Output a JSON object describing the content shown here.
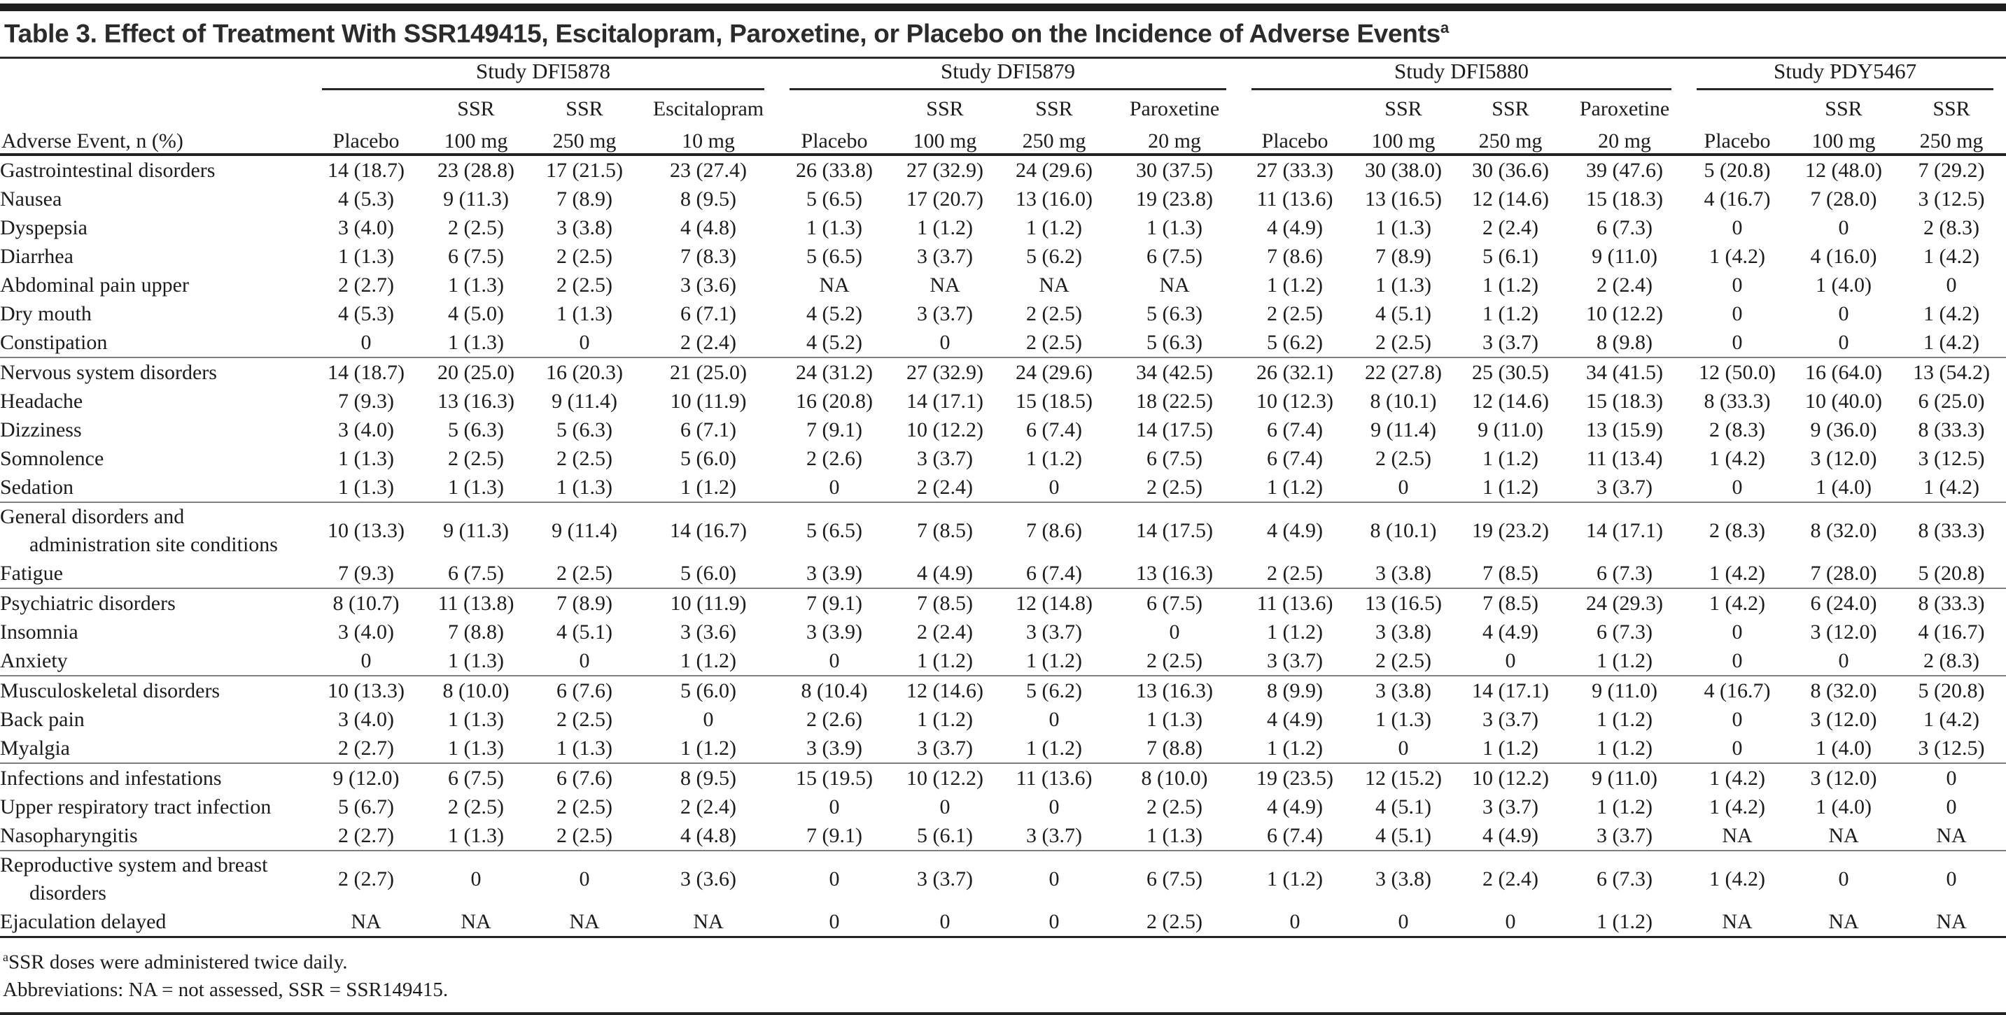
{
  "table": {
    "title": "Table 3. Effect of Treatment With SSR149415, Escitalopram, Paroxetine, or Placebo on the Incidence of Adverse Events",
    "title_superscript": "a",
    "row_header": "Adverse Event, n (%)",
    "groups": [
      {
        "name": "Study DFI5878",
        "cols": [
          {
            "drug": "",
            "dose": "Placebo"
          },
          {
            "drug": "SSR",
            "dose": "100 mg"
          },
          {
            "drug": "SSR",
            "dose": "250 mg"
          },
          {
            "drug": "Escitalopram",
            "dose": "10 mg"
          }
        ]
      },
      {
        "name": "Study DFI5879",
        "cols": [
          {
            "drug": "",
            "dose": "Placebo"
          },
          {
            "drug": "SSR",
            "dose": "100 mg"
          },
          {
            "drug": "SSR",
            "dose": "250 mg"
          },
          {
            "drug": "Paroxetine",
            "dose": "20 mg"
          }
        ]
      },
      {
        "name": "Study DFI5880",
        "cols": [
          {
            "drug": "",
            "dose": "Placebo"
          },
          {
            "drug": "SSR",
            "dose": "100 mg"
          },
          {
            "drug": "SSR",
            "dose": "250 mg"
          },
          {
            "drug": "Paroxetine",
            "dose": "20 mg"
          }
        ]
      },
      {
        "name": "Study PDY5467",
        "cols": [
          {
            "drug": "",
            "dose": "Placebo"
          },
          {
            "drug": "SSR",
            "dose": "100 mg"
          },
          {
            "drug": "SSR",
            "dose": "250 mg"
          }
        ]
      }
    ],
    "sections": [
      {
        "rows": [
          {
            "label": "Gastrointestinal disorders",
            "values": [
              "14 (18.7)",
              "23 (28.8)",
              "17 (21.5)",
              "23 (27.4)",
              "26 (33.8)",
              "27 (32.9)",
              "24 (29.6)",
              "30 (37.5)",
              "27 (33.3)",
              "30 (38.0)",
              "30 (36.6)",
              "39 (47.6)",
              "5 (20.8)",
              "12 (48.0)",
              "7 (29.2)"
            ]
          },
          {
            "label": "Nausea",
            "values": [
              "4 (5.3)",
              "9 (11.3)",
              "7 (8.9)",
              "8 (9.5)",
              "5 (6.5)",
              "17 (20.7)",
              "13 (16.0)",
              "19 (23.8)",
              "11 (13.6)",
              "13 (16.5)",
              "12 (14.6)",
              "15 (18.3)",
              "4 (16.7)",
              "7 (28.0)",
              "3 (12.5)"
            ]
          },
          {
            "label": "Dyspepsia",
            "values": [
              "3 (4.0)",
              "2 (2.5)",
              "3 (3.8)",
              "4 (4.8)",
              "1 (1.3)",
              "1 (1.2)",
              "1 (1.2)",
              "1 (1.3)",
              "4 (4.9)",
              "1 (1.3)",
              "2 (2.4)",
              "6 (7.3)",
              "0",
              "0",
              "2 (8.3)"
            ]
          },
          {
            "label": "Diarrhea",
            "values": [
              "1 (1.3)",
              "6 (7.5)",
              "2 (2.5)",
              "7 (8.3)",
              "5 (6.5)",
              "3 (3.7)",
              "5 (6.2)",
              "6 (7.5)",
              "7 (8.6)",
              "7 (8.9)",
              "5 (6.1)",
              "9 (11.0)",
              "1 (4.2)",
              "4 (16.0)",
              "1 (4.2)"
            ]
          },
          {
            "label": "Abdominal pain upper",
            "values": [
              "2 (2.7)",
              "1 (1.3)",
              "2 (2.5)",
              "3 (3.6)",
              "NA",
              "NA",
              "NA",
              "NA",
              "1 (1.2)",
              "1 (1.3)",
              "1 (1.2)",
              "2 (2.4)",
              "0",
              "1 (4.0)",
              "0"
            ]
          },
          {
            "label": "Dry mouth",
            "values": [
              "4 (5.3)",
              "4 (5.0)",
              "1 (1.3)",
              "6 (7.1)",
              "4 (5.2)",
              "3 (3.7)",
              "2 (2.5)",
              "5 (6.3)",
              "2 (2.5)",
              "4 (5.1)",
              "1 (1.2)",
              "10 (12.2)",
              "0",
              "0",
              "1 (4.2)"
            ]
          },
          {
            "label": "Constipation",
            "values": [
              "0",
              "1 (1.3)",
              "0",
              "2 (2.4)",
              "4 (5.2)",
              "0",
              "2 (2.5)",
              "5 (6.3)",
              "5 (6.2)",
              "2 (2.5)",
              "3 (3.7)",
              "8 (9.8)",
              "0",
              "0",
              "1 (4.2)"
            ]
          }
        ]
      },
      {
        "rows": [
          {
            "label": "Nervous system disorders",
            "values": [
              "14 (18.7)",
              "20 (25.0)",
              "16 (20.3)",
              "21 (25.0)",
              "24 (31.2)",
              "27 (32.9)",
              "24 (29.6)",
              "34 (42.5)",
              "26 (32.1)",
              "22 (27.8)",
              "25 (30.5)",
              "34 (41.5)",
              "12 (50.0)",
              "16 (64.0)",
              "13 (54.2)"
            ]
          },
          {
            "label": "Headache",
            "values": [
              "7 (9.3)",
              "13 (16.3)",
              "9 (11.4)",
              "10 (11.9)",
              "16 (20.8)",
              "14 (17.1)",
              "15 (18.5)",
              "18 (22.5)",
              "10 (12.3)",
              "8 (10.1)",
              "12 (14.6)",
              "15 (18.3)",
              "8 (33.3)",
              "10 (40.0)",
              "6 (25.0)"
            ]
          },
          {
            "label": "Dizziness",
            "values": [
              "3 (4.0)",
              "5 (6.3)",
              "5 (6.3)",
              "6 (7.1)",
              "7 (9.1)",
              "10 (12.2)",
              "6 (7.4)",
              "14 (17.5)",
              "6 (7.4)",
              "9 (11.4)",
              "9 (11.0)",
              "13 (15.9)",
              "2 (8.3)",
              "9 (36.0)",
              "8 (33.3)"
            ]
          },
          {
            "label": "Somnolence",
            "values": [
              "1 (1.3)",
              "2 (2.5)",
              "2 (2.5)",
              "5 (6.0)",
              "2 (2.6)",
              "3 (3.7)",
              "1 (1.2)",
              "6 (7.5)",
              "6 (7.4)",
              "2 (2.5)",
              "1 (1.2)",
              "11 (13.4)",
              "1 (4.2)",
              "3 (12.0)",
              "3 (12.5)"
            ]
          },
          {
            "label": "Sedation",
            "values": [
              "1 (1.3)",
              "1 (1.3)",
              "1 (1.3)",
              "1 (1.2)",
              "0",
              "2 (2.4)",
              "0",
              "2 (2.5)",
              "1 (1.2)",
              "0",
              "1 (1.2)",
              "3 (3.7)",
              "0",
              "1 (4.0)",
              "1 (4.2)"
            ]
          }
        ]
      },
      {
        "rows": [
          {
            "label": "General disorders and administration site conditions",
            "values": [
              "10 (13.3)",
              "9 (11.3)",
              "9 (11.4)",
              "14 (16.7)",
              "5 (6.5)",
              "7 (8.5)",
              "7 (8.6)",
              "14 (17.5)",
              "4 (4.9)",
              "8 (10.1)",
              "19 (23.2)",
              "14 (17.1)",
              "2 (8.3)",
              "8 (32.0)",
              "8 (33.3)"
            ]
          },
          {
            "label": "Fatigue",
            "values": [
              "7 (9.3)",
              "6 (7.5)",
              "2 (2.5)",
              "5 (6.0)",
              "3 (3.9)",
              "4 (4.9)",
              "6 (7.4)",
              "13 (16.3)",
              "2 (2.5)",
              "3 (3.8)",
              "7 (8.5)",
              "6 (7.3)",
              "1 (4.2)",
              "7 (28.0)",
              "5 (20.8)"
            ]
          }
        ]
      },
      {
        "rows": [
          {
            "label": "Psychiatric disorders",
            "values": [
              "8 (10.7)",
              "11 (13.8)",
              "7 (8.9)",
              "10 (11.9)",
              "7 (9.1)",
              "7 (8.5)",
              "12 (14.8)",
              "6 (7.5)",
              "11 (13.6)",
              "13 (16.5)",
              "7 (8.5)",
              "24 (29.3)",
              "1 (4.2)",
              "6 (24.0)",
              "8 (33.3)"
            ]
          },
          {
            "label": "Insomnia",
            "values": [
              "3 (4.0)",
              "7 (8.8)",
              "4 (5.1)",
              "3 (3.6)",
              "3 (3.9)",
              "2 (2.4)",
              "3 (3.7)",
              "0",
              "1 (1.2)",
              "3 (3.8)",
              "4 (4.9)",
              "6 (7.3)",
              "0",
              "3 (12.0)",
              "4 (16.7)"
            ]
          },
          {
            "label": "Anxiety",
            "values": [
              "0",
              "1 (1.3)",
              "0",
              "1 (1.2)",
              "0",
              "1 (1.2)",
              "1 (1.2)",
              "2 (2.5)",
              "3 (3.7)",
              "2 (2.5)",
              "0",
              "1 (1.2)",
              "0",
              "0",
              "2 (8.3)"
            ]
          }
        ]
      },
      {
        "rows": [
          {
            "label": "Musculoskeletal disorders",
            "values": [
              "10 (13.3)",
              "8 (10.0)",
              "6 (7.6)",
              "5 (6.0)",
              "8 (10.4)",
              "12 (14.6)",
              "5 (6.2)",
              "13 (16.3)",
              "8 (9.9)",
              "3 (3.8)",
              "14 (17.1)",
              "9 (11.0)",
              "4 (16.7)",
              "8 (32.0)",
              "5 (20.8)"
            ]
          },
          {
            "label": "Back pain",
            "values": [
              "3 (4.0)",
              "1 (1.3)",
              "2 (2.5)",
              "0",
              "2 (2.6)",
              "1 (1.2)",
              "0",
              "1 (1.3)",
              "4 (4.9)",
              "1 (1.3)",
              "3 (3.7)",
              "1 (1.2)",
              "0",
              "3 (12.0)",
              "1 (4.2)"
            ]
          },
          {
            "label": "Myalgia",
            "values": [
              "2 (2.7)",
              "1 (1.3)",
              "1 (1.3)",
              "1 (1.2)",
              "3 (3.9)",
              "3 (3.7)",
              "1 (1.2)",
              "7 (8.8)",
              "1 (1.2)",
              "0",
              "1 (1.2)",
              "1 (1.2)",
              "0",
              "1 (4.0)",
              "3 (12.5)"
            ]
          }
        ]
      },
      {
        "rows": [
          {
            "label": "Infections and infestations",
            "values": [
              "9 (12.0)",
              "6 (7.5)",
              "6 (7.6)",
              "8 (9.5)",
              "15 (19.5)",
              "10 (12.2)",
              "11 (13.6)",
              "8 (10.0)",
              "19 (23.5)",
              "12 (15.2)",
              "10 (12.2)",
              "9 (11.0)",
              "1 (4.2)",
              "3 (12.0)",
              "0"
            ]
          },
          {
            "label": "Upper respiratory tract infection",
            "values": [
              "5 (6.7)",
              "2 (2.5)",
              "2 (2.5)",
              "2 (2.4)",
              "0",
              "0",
              "0",
              "2 (2.5)",
              "4 (4.9)",
              "4 (5.1)",
              "3 (3.7)",
              "1 (1.2)",
              "1 (4.2)",
              "1 (4.0)",
              "0"
            ]
          },
          {
            "label": "Nasopharyngitis",
            "values": [
              "2 (2.7)",
              "1 (1.3)",
              "2 (2.5)",
              "4 (4.8)",
              "7 (9.1)",
              "5 (6.1)",
              "3 (3.7)",
              "1 (1.3)",
              "6 (7.4)",
              "4 (5.1)",
              "4 (4.9)",
              "3 (3.7)",
              "NA",
              "NA",
              "NA"
            ]
          }
        ]
      },
      {
        "rows": [
          {
            "label": "Reproductive system and breast disorders",
            "values": [
              "2 (2.7)",
              "0",
              "0",
              "3 (3.6)",
              "0",
              "3 (3.7)",
              "0",
              "6 (7.5)",
              "1 (1.2)",
              "3 (3.8)",
              "2 (2.4)",
              "6 (7.3)",
              "1 (4.2)",
              "0",
              "0"
            ]
          },
          {
            "label": "Ejaculation delayed",
            "values": [
              "NA",
              "NA",
              "NA",
              "NA",
              "0",
              "0",
              "0",
              "2 (2.5)",
              "0",
              "0",
              "0",
              "1 (1.2)",
              "NA",
              "NA",
              "NA"
            ]
          }
        ]
      }
    ],
    "footnotes": [
      {
        "marker": "a",
        "text": "SSR doses were administered twice daily."
      },
      {
        "marker": "",
        "text": "Abbreviations: NA = not assessed, SSR = SSR149415."
      }
    ]
  }
}
